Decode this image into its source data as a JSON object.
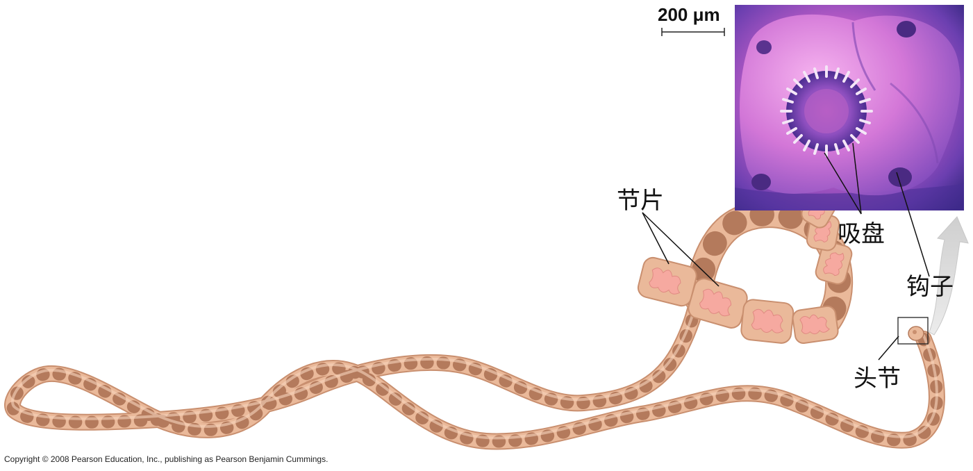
{
  "scale_bar": {
    "text": "200 μm"
  },
  "labels": {
    "proglottids": "节片",
    "suckers": "吸盘",
    "hooks": "钩子",
    "scolex": "头节"
  },
  "copyright": "Copyright © 2008 Pearson Education, Inc., publishing as Pearson Benjamin Cummings.",
  "colors": {
    "body": "#eab99a",
    "body_edge": "#c98f6f",
    "segment_line": "#b47a5c",
    "organ": "#f6a9a0",
    "micrograph_light": "#e77fd6",
    "micrograph_dark": "#3a2a8c",
    "arrow": "#d9d9d9"
  }
}
